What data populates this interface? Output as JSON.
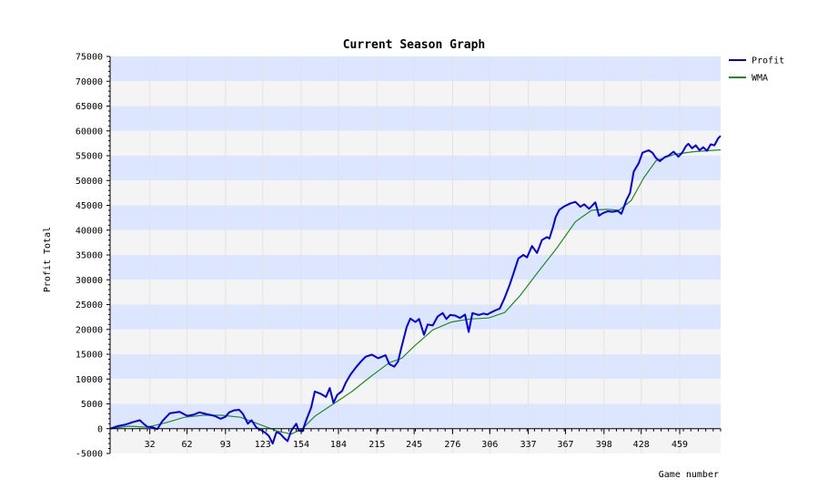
{
  "chart_data": {
    "type": "line",
    "title": "Current Season Graph",
    "xlabel": "Game number",
    "ylabel": "Profit Total",
    "xlim": [
      0,
      492
    ],
    "ylim": [
      -5000,
      75000
    ],
    "x_ticks": [
      32,
      62,
      93,
      123,
      154,
      184,
      215,
      245,
      276,
      306,
      337,
      367,
      398,
      428,
      459
    ],
    "y_ticks": [
      -5000,
      0,
      5000,
      10000,
      15000,
      20000,
      25000,
      30000,
      35000,
      40000,
      45000,
      50000,
      55000,
      60000,
      65000,
      70000,
      75000
    ],
    "grid": "horizontal alternating bands",
    "legend_position": "top-right",
    "colors": {
      "band_blue": "#dde6ff",
      "band_gray": "#f4f4f4"
    },
    "series": [
      {
        "name": "Profit",
        "color": "#0000ee",
        "points": [
          [
            0,
            0
          ],
          [
            6,
            500
          ],
          [
            12,
            800
          ],
          [
            18,
            1300
          ],
          [
            24,
            1700
          ],
          [
            27,
            1000
          ],
          [
            30,
            400
          ],
          [
            34,
            300
          ],
          [
            38,
            -100
          ],
          [
            42,
            1500
          ],
          [
            48,
            3100
          ],
          [
            56,
            3400
          ],
          [
            62,
            2600
          ],
          [
            67,
            2800
          ],
          [
            72,
            3300
          ],
          [
            78,
            2900
          ],
          [
            84,
            2600
          ],
          [
            89,
            2000
          ],
          [
            93,
            2400
          ],
          [
            96,
            3300
          ],
          [
            100,
            3700
          ],
          [
            104,
            3800
          ],
          [
            107,
            3000
          ],
          [
            111,
            1000
          ],
          [
            114,
            1700
          ],
          [
            118,
            200
          ],
          [
            121,
            -200
          ],
          [
            125,
            -800
          ],
          [
            128,
            -1500
          ],
          [
            131,
            -3000
          ],
          [
            134,
            -700
          ],
          [
            137,
            -1000
          ],
          [
            140,
            -1800
          ],
          [
            143,
            -2500
          ],
          [
            146,
            -400
          ],
          [
            150,
            1000
          ],
          [
            152,
            -400
          ],
          [
            155,
            -500
          ],
          [
            158,
            1700
          ],
          [
            162,
            4200
          ],
          [
            165,
            7500
          ],
          [
            170,
            7000
          ],
          [
            174,
            6400
          ],
          [
            177,
            8200
          ],
          [
            180,
            5200
          ],
          [
            183,
            6800
          ],
          [
            187,
            7600
          ],
          [
            190,
            9300
          ],
          [
            194,
            11000
          ],
          [
            198,
            12300
          ],
          [
            202,
            13500
          ],
          [
            206,
            14500
          ],
          [
            211,
            14900
          ],
          [
            216,
            14200
          ],
          [
            222,
            14800
          ],
          [
            225,
            13000
          ],
          [
            229,
            12500
          ],
          [
            232,
            13500
          ],
          [
            235,
            16600
          ],
          [
            239,
            20500
          ],
          [
            242,
            22200
          ],
          [
            246,
            21500
          ],
          [
            249,
            22100
          ],
          [
            253,
            18900
          ],
          [
            256,
            21000
          ],
          [
            260,
            20800
          ],
          [
            264,
            22600
          ],
          [
            268,
            23300
          ],
          [
            271,
            22100
          ],
          [
            274,
            22900
          ],
          [
            278,
            22800
          ],
          [
            282,
            22300
          ],
          [
            286,
            23000
          ],
          [
            289,
            19500
          ],
          [
            292,
            23300
          ],
          [
            297,
            22900
          ],
          [
            301,
            23200
          ],
          [
            304,
            23000
          ],
          [
            306,
            23300
          ],
          [
            311,
            23900
          ],
          [
            314,
            24200
          ],
          [
            318,
            26400
          ],
          [
            322,
            29000
          ],
          [
            325,
            31200
          ],
          [
            329,
            34300
          ],
          [
            333,
            35000
          ],
          [
            336,
            34500
          ],
          [
            340,
            36800
          ],
          [
            344,
            35400
          ],
          [
            348,
            38000
          ],
          [
            352,
            38600
          ],
          [
            354,
            38300
          ],
          [
            357,
            40700
          ],
          [
            359,
            42600
          ],
          [
            362,
            44100
          ],
          [
            366,
            44800
          ],
          [
            371,
            45400
          ],
          [
            375,
            45700
          ],
          [
            379,
            44700
          ],
          [
            382,
            45200
          ],
          [
            386,
            44300
          ],
          [
            391,
            45600
          ],
          [
            394,
            42900
          ],
          [
            397,
            43400
          ],
          [
            401,
            43800
          ],
          [
            405,
            43700
          ],
          [
            409,
            43900
          ],
          [
            412,
            43300
          ],
          [
            416,
            46000
          ],
          [
            419,
            47500
          ],
          [
            422,
            51800
          ],
          [
            426,
            53500
          ],
          [
            429,
            55600
          ],
          [
            434,
            56100
          ],
          [
            437,
            55600
          ],
          [
            440,
            54500
          ],
          [
            443,
            53900
          ],
          [
            447,
            54700
          ],
          [
            450,
            55000
          ],
          [
            454,
            55800
          ],
          [
            458,
            54800
          ],
          [
            461,
            55600
          ],
          [
            464,
            56900
          ],
          [
            466,
            57400
          ],
          [
            469,
            56500
          ],
          [
            472,
            57100
          ],
          [
            475,
            56100
          ],
          [
            478,
            56700
          ],
          [
            481,
            56000
          ],
          [
            484,
            57300
          ],
          [
            487,
            57100
          ],
          [
            490,
            58500
          ],
          [
            492,
            59000
          ]
        ]
      },
      {
        "name": "WMA",
        "color": "#228b22",
        "points": [
          [
            0,
            0
          ],
          [
            15,
            500
          ],
          [
            30,
            300
          ],
          [
            45,
            1200
          ],
          [
            60,
            2300
          ],
          [
            75,
            2700
          ],
          [
            90,
            2700
          ],
          [
            105,
            2300
          ],
          [
            120,
            900
          ],
          [
            135,
            -500
          ],
          [
            146,
            -1100
          ],
          [
            155,
            0
          ],
          [
            165,
            2500
          ],
          [
            180,
            5000
          ],
          [
            195,
            7500
          ],
          [
            210,
            10500
          ],
          [
            225,
            13300
          ],
          [
            235,
            14200
          ],
          [
            245,
            16600
          ],
          [
            260,
            19900
          ],
          [
            275,
            21500
          ],
          [
            290,
            22100
          ],
          [
            305,
            22300
          ],
          [
            318,
            23400
          ],
          [
            330,
            26700
          ],
          [
            345,
            31600
          ],
          [
            360,
            36400
          ],
          [
            375,
            41700
          ],
          [
            388,
            44000
          ],
          [
            400,
            44200
          ],
          [
            410,
            44000
          ],
          [
            420,
            46000
          ],
          [
            430,
            50500
          ],
          [
            440,
            54000
          ],
          [
            455,
            55300
          ],
          [
            470,
            55800
          ],
          [
            492,
            56200
          ]
        ]
      }
    ]
  }
}
